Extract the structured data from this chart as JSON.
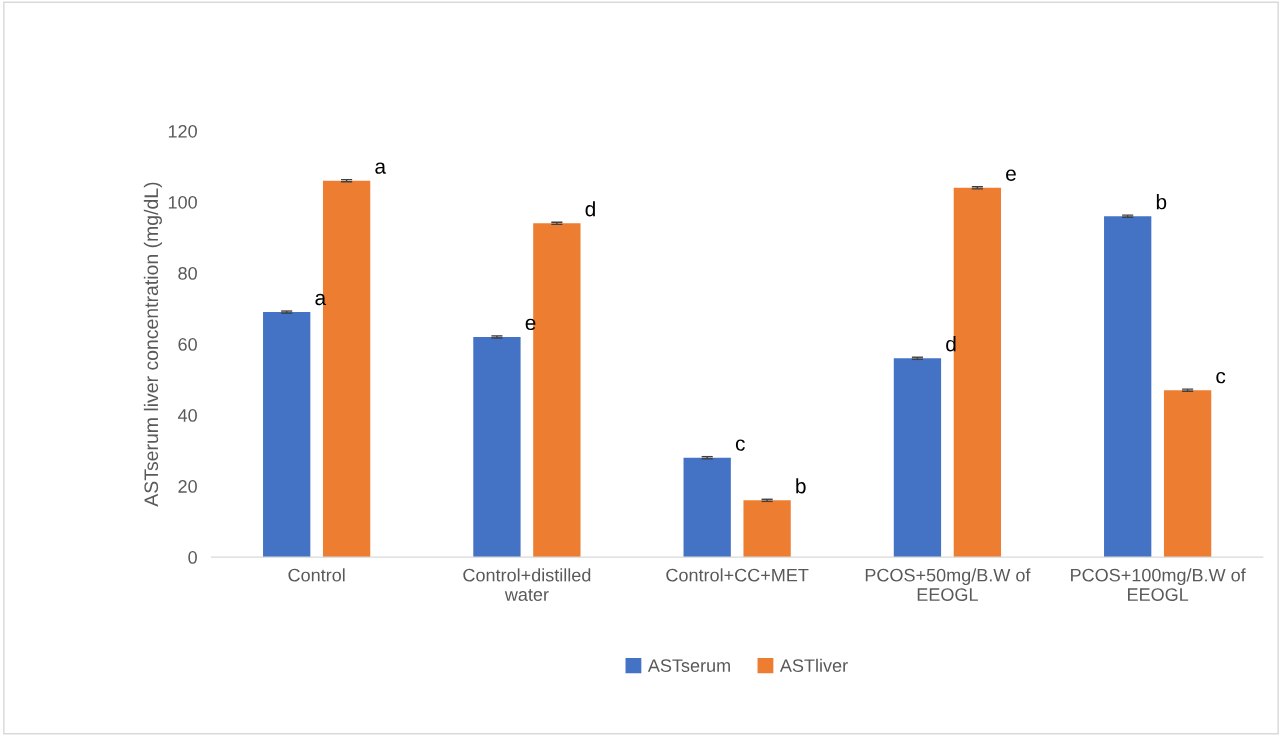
{
  "chart_data": {
    "type": "bar",
    "ylabel": "ASTserum liver concentration (mg/dL)",
    "categories": [
      "Control",
      "Control+distilled water",
      "Control+CC+MET",
      "PCOS+50mg/B.W of EEOGL",
      "PCOS+100mg/B.W of EEOGL"
    ],
    "series": [
      {
        "name": "ASTserum",
        "color": "#4472c4",
        "values": [
          69,
          62,
          28,
          56,
          96
        ],
        "value_labels": [
          "a",
          "e",
          "c",
          "d",
          "b"
        ],
        "errors": [
          0.3,
          0.3,
          0.3,
          0.3,
          0.3
        ]
      },
      {
        "name": "ASTliver",
        "color": "#ed7d31",
        "values": [
          106,
          94,
          16,
          104,
          47
        ],
        "value_labels": [
          "a",
          "d",
          "b",
          "e",
          "c"
        ],
        "errors": [
          0.3,
          0.3,
          0.3,
          0.3,
          0.3
        ]
      }
    ],
    "ylim": [
      0,
      120
    ],
    "yticks": [
      0,
      20,
      40,
      60,
      80,
      100,
      120
    ],
    "grid": false,
    "legend": "bottom"
  }
}
